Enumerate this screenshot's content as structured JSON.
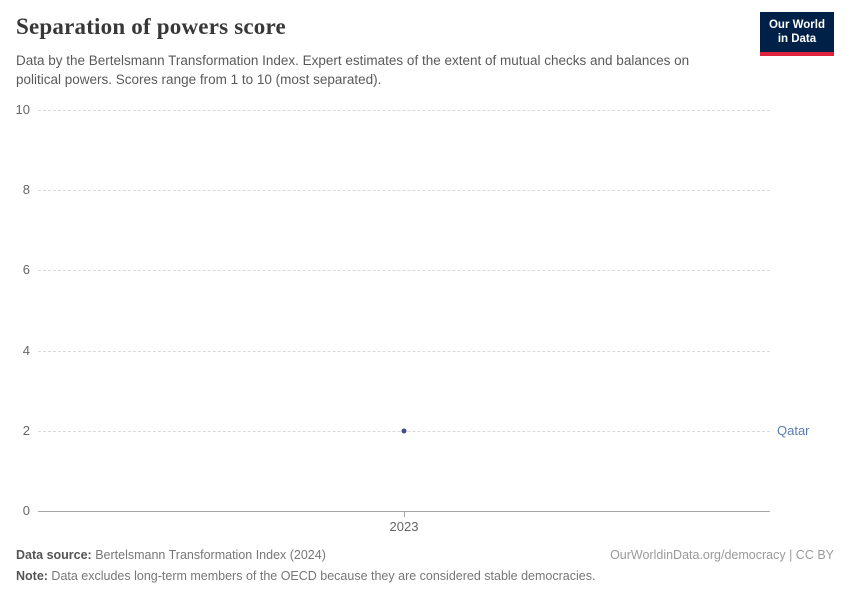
{
  "header": {
    "title": "Separation of powers score",
    "subtitle": "Data by the Bertelsmann Transformation Index. Expert estimates of the extent of mutual checks and balances on political powers. Scores range from 1 to 10 (most separated).",
    "logo": {
      "line1": "Our World",
      "line2": "in Data",
      "bg_color": "#002147",
      "accent_color": "#e0233c"
    }
  },
  "chart_data": {
    "type": "scatter",
    "title": "Separation of powers score",
    "x": [
      2023
    ],
    "xticks": [
      "2023"
    ],
    "yticks": [
      0,
      2,
      4,
      6,
      8,
      10
    ],
    "ylim": [
      0,
      10
    ],
    "xlabel": "",
    "ylabel": "",
    "grid": "horizontal-dashed",
    "legend": "entity-label-right-of-plot",
    "series": [
      {
        "name": "Qatar",
        "values": [
          2
        ],
        "point_color": "#3d4e8f",
        "label_color": "#5b7cb0"
      }
    ]
  },
  "footer": {
    "data_source_label": "Data source:",
    "data_source_text": " Bertelsmann Transformation Index (2024)",
    "attribution": "OurWorldinData.org/democracy | CC BY",
    "note_label": "Note:",
    "note_text": " Data excludes long-term members of the OECD because they are considered stable democracies."
  }
}
